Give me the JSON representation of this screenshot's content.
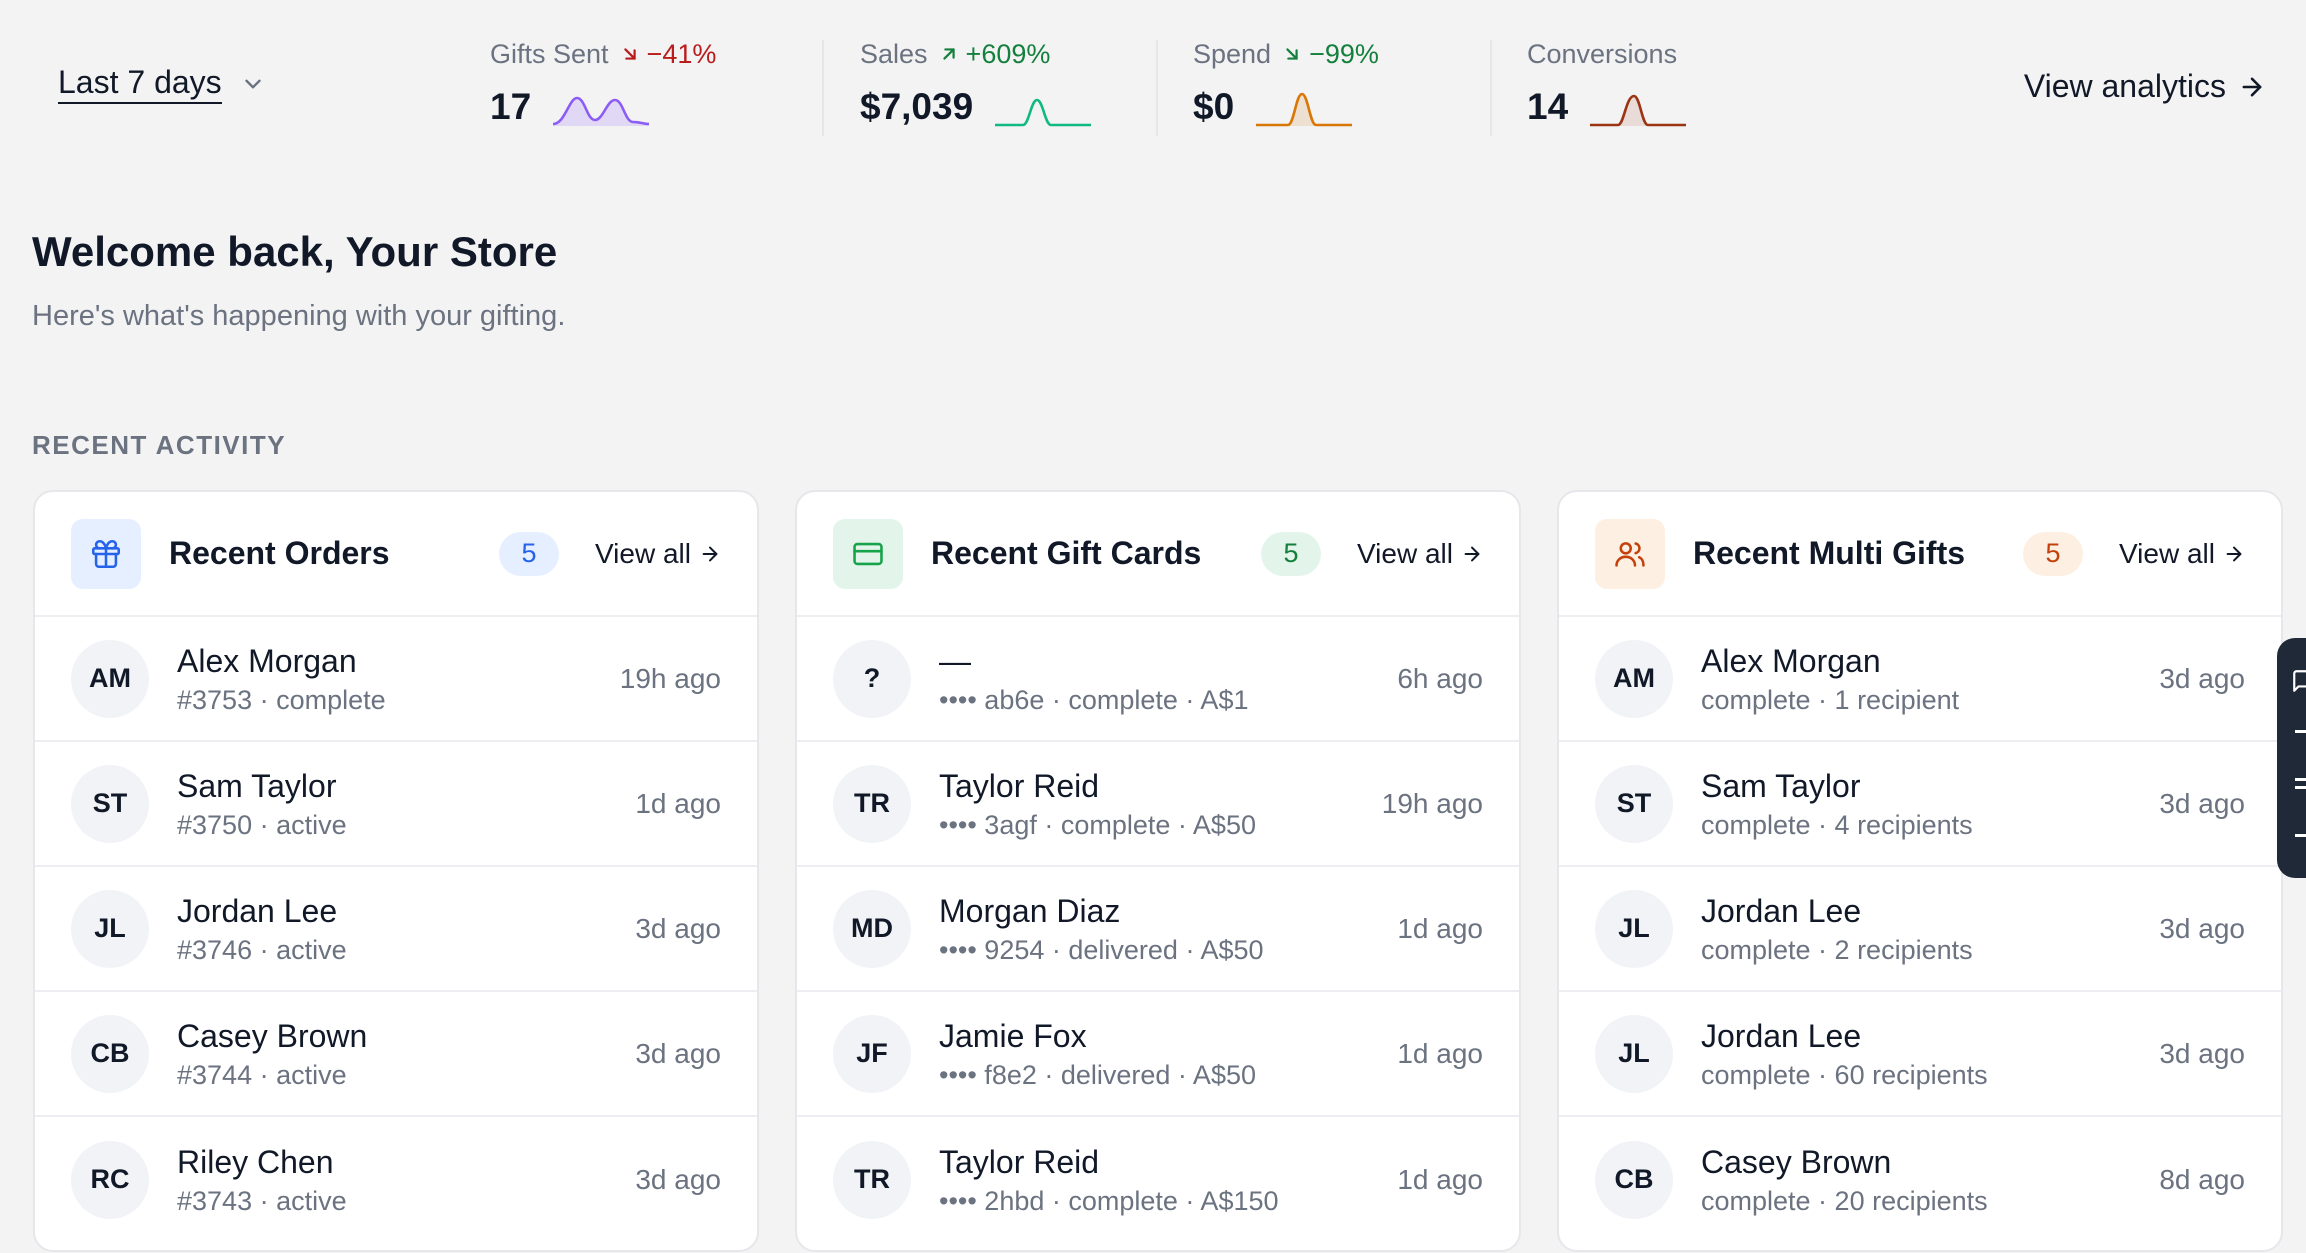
{
  "range": {
    "label": "Last 7 days"
  },
  "stats": [
    {
      "label": "Gifts Sent",
      "delta": "−41%",
      "direction": "down",
      "value": "17",
      "color": "#8b5cf6"
    },
    {
      "label": "Sales",
      "delta": "+609%",
      "direction": "up",
      "value": "$7,039",
      "color": "#10b981"
    },
    {
      "label": "Spend",
      "delta": "−99%",
      "direction": "down-green",
      "value": "$0",
      "color": "#d97706"
    },
    {
      "label": "Conversions",
      "delta": "",
      "direction": "none",
      "value": "14",
      "color": "#9a3412"
    }
  ],
  "view_analytics": "View analytics",
  "welcome": {
    "title": "Welcome back, Your Store",
    "subtitle": "Here's what's happening with your gifting."
  },
  "section_label": "RECENT ACTIVITY",
  "cards": [
    {
      "title": "Recent Orders",
      "count": "5",
      "view_all": "View all",
      "icon": "gift-icon",
      "rows": [
        {
          "initials": "AM",
          "name": "Alex Morgan",
          "sub": "#3753 · complete",
          "time": "19h ago"
        },
        {
          "initials": "ST",
          "name": "Sam Taylor",
          "sub": "#3750 · active",
          "time": "1d ago"
        },
        {
          "initials": "JL",
          "name": "Jordan Lee",
          "sub": "#3746 · active",
          "time": "3d ago"
        },
        {
          "initials": "CB",
          "name": "Casey Brown",
          "sub": "#3744 · active",
          "time": "3d ago"
        },
        {
          "initials": "RC",
          "name": "Riley Chen",
          "sub": "#3743 · active",
          "time": "3d ago"
        }
      ]
    },
    {
      "title": "Recent Gift Cards",
      "count": "5",
      "view_all": "View all",
      "icon": "credit-card-icon",
      "rows": [
        {
          "initials": "?",
          "name": "—",
          "sub": "•••• ab6e · complete · A$1",
          "time": "6h ago"
        },
        {
          "initials": "TR",
          "name": "Taylor Reid",
          "sub": "•••• 3agf · complete · A$50",
          "time": "19h ago"
        },
        {
          "initials": "MD",
          "name": "Morgan Diaz",
          "sub": "•••• 9254 · delivered · A$50",
          "time": "1d ago"
        },
        {
          "initials": "JF",
          "name": "Jamie Fox",
          "sub": "•••• f8e2 · delivered · A$50",
          "time": "1d ago"
        },
        {
          "initials": "TR",
          "name": "Taylor Reid",
          "sub": "•••• 2hbd · complete · A$150",
          "time": "1d ago"
        }
      ]
    },
    {
      "title": "Recent Multi Gifts",
      "count": "5",
      "view_all": "View all",
      "icon": "users-icon",
      "rows": [
        {
          "initials": "AM",
          "name": "Alex Morgan",
          "sub": "complete · 1 recipient",
          "time": "3d ago"
        },
        {
          "initials": "ST",
          "name": "Sam Taylor",
          "sub": "complete · 4 recipients",
          "time": "3d ago"
        },
        {
          "initials": "JL",
          "name": "Jordan Lee",
          "sub": "complete · 2 recipients",
          "time": "3d ago"
        },
        {
          "initials": "JL",
          "name": "Jordan Lee",
          "sub": "complete · 60 recipients",
          "time": "3d ago"
        },
        {
          "initials": "CB",
          "name": "Casey Brown",
          "sub": "complete · 20 recipients",
          "time": "8d ago"
        }
      ]
    }
  ]
}
